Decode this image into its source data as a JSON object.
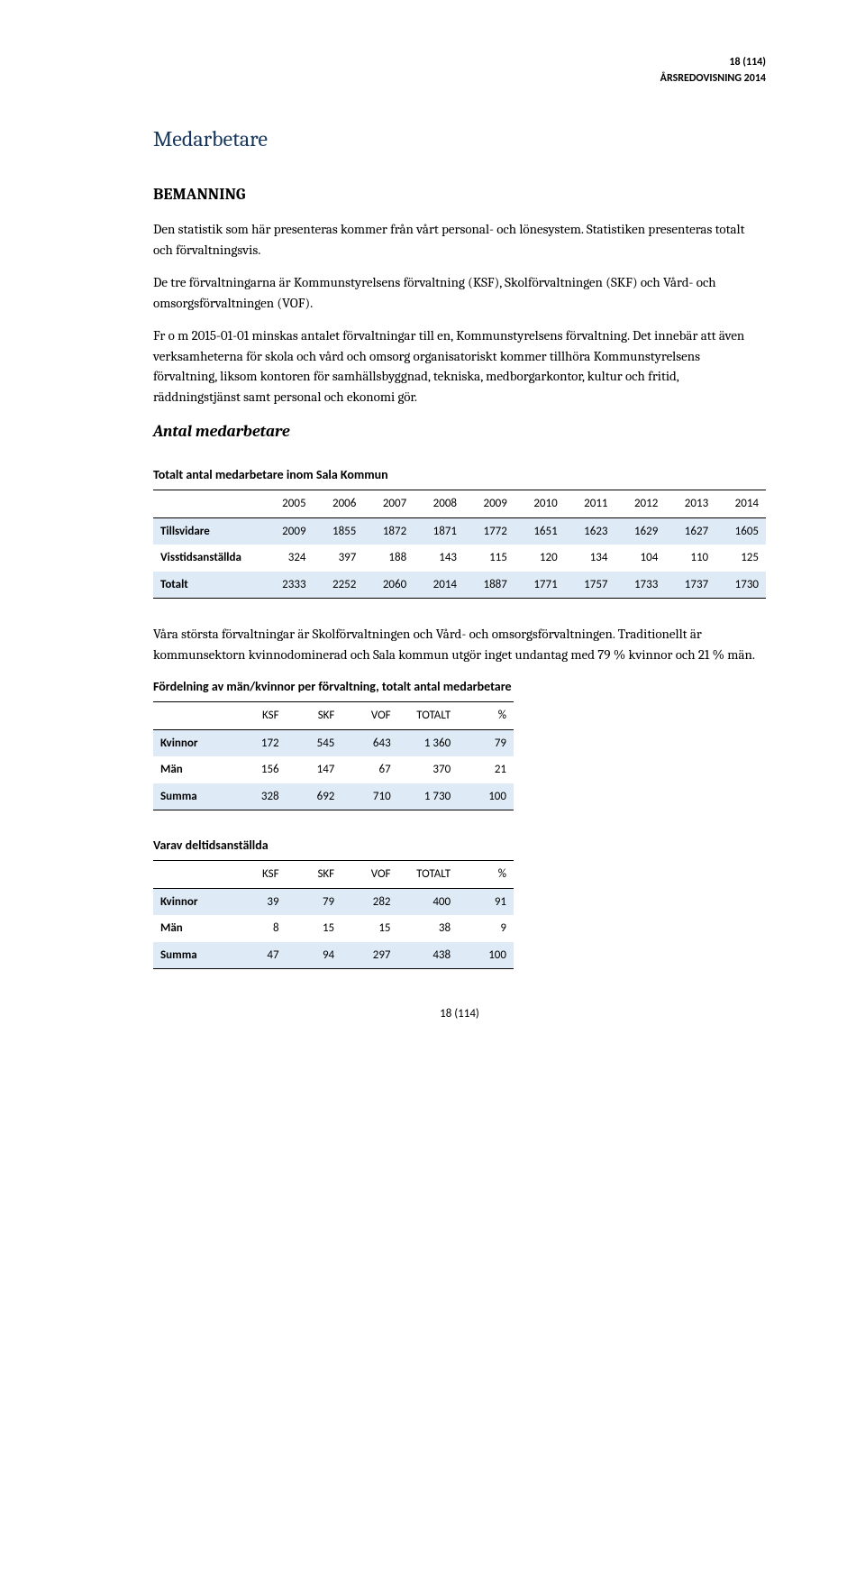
{
  "header": {
    "page": "18 (114)",
    "doc": "ÅRSREDOVISNING 2014"
  },
  "h1": "Medarbetare",
  "h2_bemanning": "BEMANNING",
  "p1": "Den statistik som här presenteras kommer från vårt personal- och lönesystem. Statistiken presenteras totalt och förvaltningsvis.",
  "p2": "De tre förvaltningarna är Kommunstyrelsens förvaltning (KSF), Skolförvaltningen (SKF) och Vård- och omsorgsförvaltningen (VOF).",
  "p3": "Fr o m 2015-01-01 minskas antalet förvaltningar till en, Kommunstyrelsens förvaltning. Det innebär att även verksamheterna för skola och vård och omsorg organisatoriskt kommer tillhöra Kommunstyrelsens förvaltning, liksom kontoren för samhällsbyggnad, tekniska, medborgarkontor, kultur och fritid, räddningstjänst samt personal och ekonomi gör.",
  "h2_antal": "Antal medarbetare",
  "table1": {
    "title": "Totalt antal medarbetare inom Sala Kommun",
    "years": [
      "2005",
      "2006",
      "2007",
      "2008",
      "2009",
      "2010",
      "2011",
      "2012",
      "2013",
      "2014"
    ],
    "rows": [
      {
        "label": "Tillsvidare",
        "vals": [
          "2009",
          "1855",
          "1872",
          "1871",
          "1772",
          "1651",
          "1623",
          "1629",
          "1627",
          "1605"
        ],
        "hl": true
      },
      {
        "label": "Visstidsanställda",
        "vals": [
          "324",
          "397",
          "188",
          "143",
          "115",
          "120",
          "134",
          "104",
          "110",
          "125"
        ],
        "hl": false
      },
      {
        "label": "Totalt",
        "vals": [
          "2333",
          "2252",
          "2060",
          "2014",
          "1887",
          "1771",
          "1757",
          "1733",
          "1737",
          "1730"
        ],
        "hl": true
      }
    ]
  },
  "p4": "Våra största förvaltningar är Skolförvaltningen och Vård- och omsorgsförvaltningen. Traditionellt är kommunsektorn kvinnodominerad och Sala kommun utgör inget undantag med 79 % kvinnor och 21 % män.",
  "table2": {
    "title": "Fördelning av män/kvinnor per förvaltning, totalt antal medarbetare",
    "cols": [
      "KSF",
      "SKF",
      "VOF",
      "TOTALT",
      "%"
    ],
    "rows": [
      {
        "label": "Kvinnor",
        "vals": [
          "172",
          "545",
          "643",
          "1 360",
          "79"
        ],
        "hl": true
      },
      {
        "label": "Män",
        "vals": [
          "156",
          "147",
          "67",
          "370",
          "21"
        ],
        "hl": false
      },
      {
        "label": "Summa",
        "vals": [
          "328",
          "692",
          "710",
          "1 730",
          "100"
        ],
        "hl": true
      }
    ]
  },
  "table3": {
    "title": "Varav deltidsanställda",
    "cols": [
      "KSF",
      "SKF",
      "VOF",
      "TOTALT",
      "%"
    ],
    "rows": [
      {
        "label": "Kvinnor",
        "vals": [
          "39",
          "79",
          "282",
          "400",
          "91"
        ],
        "hl": true
      },
      {
        "label": "Män",
        "vals": [
          "8",
          "15",
          "15",
          "38",
          "9"
        ],
        "hl": false
      },
      {
        "label": "Summa",
        "vals": [
          "47",
          "94",
          "297",
          "438",
          "100"
        ],
        "hl": true
      }
    ]
  },
  "footer": "18 (114)",
  "colors": {
    "heading": "#17365d",
    "row_highlight": "#deeaf6"
  }
}
